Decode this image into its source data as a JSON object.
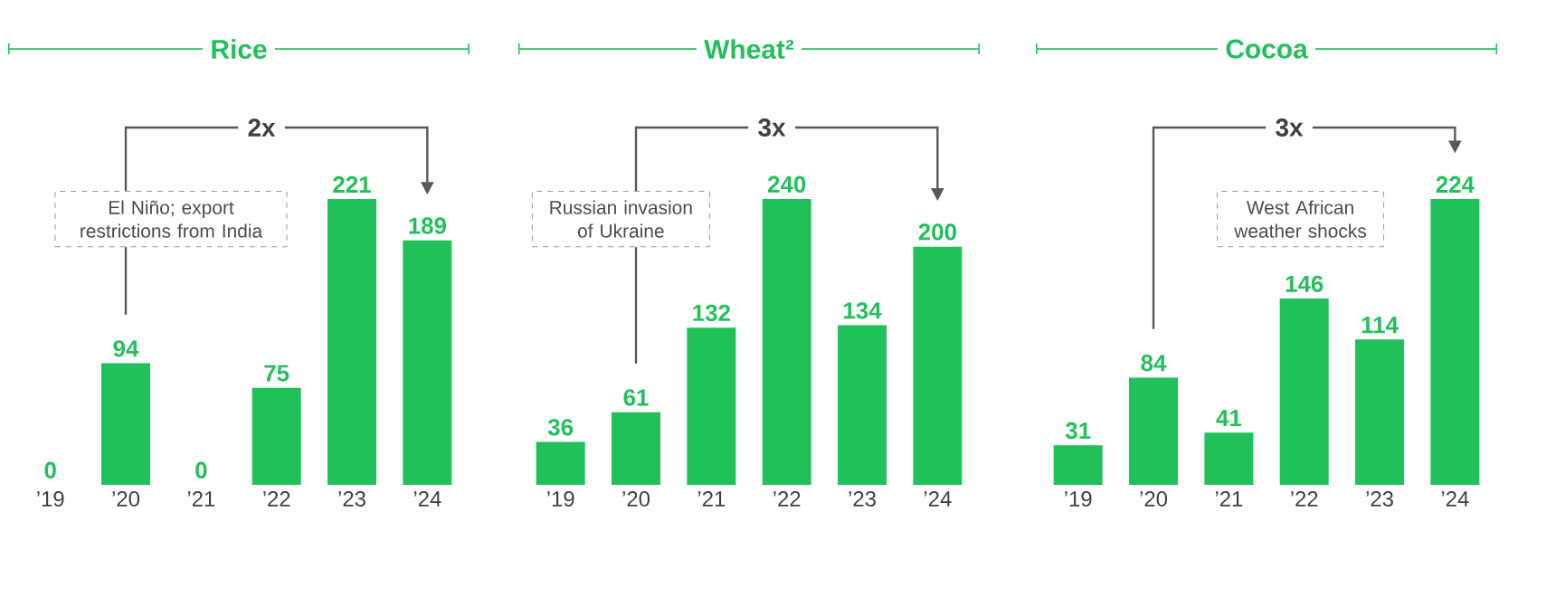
{
  "chart_data": [
    {
      "type": "bar",
      "title": "Rice",
      "categories": [
        "’19",
        "’20",
        "’21",
        "’22",
        "’23",
        "’24"
      ],
      "values": [
        0,
        94,
        0,
        75,
        221,
        189
      ],
      "color": "#22c05a",
      "data_labels": true,
      "annotations": [
        "2x",
        "El Niño; export restrictions from India"
      ]
    },
    {
      "type": "bar",
      "title": "Wheat²",
      "categories": [
        "’19",
        "’20",
        "’21",
        "’22",
        "’23",
        "’24"
      ],
      "values": [
        36,
        61,
        132,
        240,
        134,
        200
      ],
      "color": "#22c05a",
      "data_labels": true,
      "annotations": [
        "3x",
        "Russian invasion of Ukraine"
      ]
    },
    {
      "type": "bar",
      "title": "Cocoa",
      "categories": [
        "’19",
        "’20",
        "’21",
        "’22",
        "’23",
        "’24"
      ],
      "values": [
        31,
        84,
        41,
        146,
        114,
        224
      ],
      "color": "#22c05a",
      "data_labels": true,
      "annotations": [
        "3x",
        "West African weather shocks"
      ]
    }
  ]
}
